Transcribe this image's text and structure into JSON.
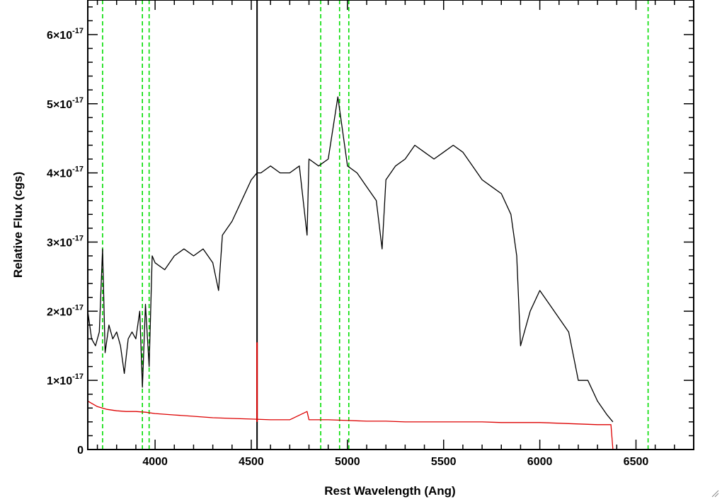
{
  "chart_data": {
    "type": "line",
    "title": "",
    "xlabel": "Rest Wavelength (Ang)",
    "ylabel": "Relative Flux (cgs)",
    "xlim": [
      3650,
      6800
    ],
    "ylim": [
      0,
      6.5e-17
    ],
    "x_ticks": [
      {
        "value": 4000,
        "label": "4000"
      },
      {
        "value": 4500,
        "label": "4500"
      },
      {
        "value": 5000,
        "label": "5000"
      },
      {
        "value": 5500,
        "label": "5500"
      },
      {
        "value": 6000,
        "label": "6000"
      },
      {
        "value": 6500,
        "label": "6500"
      }
    ],
    "y_ticks": [
      {
        "value": 0,
        "label": "0"
      },
      {
        "value": 1e-17,
        "mantissa": "1",
        "times": "×10",
        "exponent": "-17"
      },
      {
        "value": 2e-17,
        "mantissa": "2",
        "times": "×10",
        "exponent": "-17"
      },
      {
        "value": 3e-17,
        "mantissa": "3",
        "times": "×10",
        "exponent": "-17"
      },
      {
        "value": 4e-17,
        "mantissa": "4",
        "times": "×10",
        "exponent": "-17"
      },
      {
        "value": 5e-17,
        "mantissa": "5",
        "times": "×10",
        "exponent": "-17"
      },
      {
        "value": 6e-17,
        "mantissa": "6",
        "times": "×10",
        "exponent": "-17"
      }
    ],
    "reference_lines_x": [
      3727,
      3934,
      3969,
      4861,
      4959,
      5007,
      6563
    ],
    "reference_line_color": "#00dd00",
    "series": [
      {
        "color": "#000000",
        "points": [
          [
            3650,
            2e-17
          ],
          [
            3670,
            1.6e-17
          ],
          [
            3690,
            1.5e-17
          ],
          [
            3710,
            1.7e-17
          ],
          [
            3727,
            2.9e-17
          ],
          [
            3740,
            1.4e-17
          ],
          [
            3760,
            1.8e-17
          ],
          [
            3780,
            1.6e-17
          ],
          [
            3800,
            1.7e-17
          ],
          [
            3820,
            1.5e-17
          ],
          [
            3840,
            1.1e-17
          ],
          [
            3860,
            1.6e-17
          ],
          [
            3880,
            1.7e-17
          ],
          [
            3900,
            1.6e-17
          ],
          [
            3920,
            2e-17
          ],
          [
            3934,
            9e-18
          ],
          [
            3950,
            2.1e-17
          ],
          [
            3969,
            1.2e-17
          ],
          [
            3985,
            2.8e-17
          ],
          [
            4000,
            2.7e-17
          ],
          [
            4050,
            2.6e-17
          ],
          [
            4100,
            2.8e-17
          ],
          [
            4150,
            2.9e-17
          ],
          [
            4200,
            2.8e-17
          ],
          [
            4250,
            2.9e-17
          ],
          [
            4300,
            2.7e-17
          ],
          [
            4330,
            2.3e-17
          ],
          [
            4350,
            3.1e-17
          ],
          [
            4400,
            3.3e-17
          ],
          [
            4450,
            3.6e-17
          ],
          [
            4500,
            3.9e-17
          ],
          [
            4530,
            4e-17
          ],
          [
            4550,
            4e-17
          ],
          [
            4600,
            4.1e-17
          ],
          [
            4650,
            4e-17
          ],
          [
            4700,
            4e-17
          ],
          [
            4750,
            4.1e-17
          ],
          [
            4790,
            3.1e-17
          ],
          [
            4800,
            4.2e-17
          ],
          [
            4850,
            4.1e-17
          ],
          [
            4900,
            4.2e-17
          ],
          [
            4950,
            5.1e-17
          ],
          [
            5000,
            4.1e-17
          ],
          [
            5050,
            4e-17
          ],
          [
            5100,
            3.8e-17
          ],
          [
            5150,
            3.6e-17
          ],
          [
            5180,
            2.9e-17
          ],
          [
            5200,
            3.9e-17
          ],
          [
            5250,
            4.1e-17
          ],
          [
            5300,
            4.2e-17
          ],
          [
            5350,
            4.4e-17
          ],
          [
            5400,
            4.3e-17
          ],
          [
            5450,
            4.2e-17
          ],
          [
            5500,
            4.3e-17
          ],
          [
            5550,
            4.4e-17
          ],
          [
            5600,
            4.3e-17
          ],
          [
            5650,
            4.1e-17
          ],
          [
            5700,
            3.9e-17
          ],
          [
            5750,
            3.8e-17
          ],
          [
            5800,
            3.7e-17
          ],
          [
            5850,
            3.4e-17
          ],
          [
            5880,
            2.8e-17
          ],
          [
            5900,
            1.5e-17
          ],
          [
            5950,
            2e-17
          ],
          [
            6000,
            2.3e-17
          ],
          [
            6050,
            2.1e-17
          ],
          [
            6100,
            1.9e-17
          ],
          [
            6150,
            1.7e-17
          ],
          [
            6200,
            1e-17
          ],
          [
            6250,
            1e-17
          ],
          [
            6300,
            7e-18
          ],
          [
            6350,
            5e-18
          ],
          [
            6380,
            4e-18
          ]
        ]
      },
      {
        "color": "#dd0000",
        "points": [
          [
            3650,
            7e-18
          ],
          [
            3700,
            6.2e-18
          ],
          [
            3750,
            5.8e-18
          ],
          [
            3800,
            5.6e-18
          ],
          [
            3850,
            5.5e-18
          ],
          [
            3900,
            5.5e-18
          ],
          [
            3950,
            5.4e-18
          ],
          [
            4000,
            5.2e-18
          ],
          [
            4100,
            5e-18
          ],
          [
            4200,
            4.8e-18
          ],
          [
            4300,
            4.6e-18
          ],
          [
            4400,
            4.5e-18
          ],
          [
            4500,
            4.4e-18
          ],
          [
            4600,
            4.3e-18
          ],
          [
            4700,
            4.3e-18
          ],
          [
            4790,
            5.5e-18
          ],
          [
            4800,
            4.3e-18
          ],
          [
            4900,
            4.3e-18
          ],
          [
            5000,
            4.2e-18
          ],
          [
            5100,
            4.1e-18
          ],
          [
            5200,
            4.1e-18
          ],
          [
            5300,
            4e-18
          ],
          [
            5400,
            4e-18
          ],
          [
            5500,
            4e-18
          ],
          [
            5600,
            4e-18
          ],
          [
            5700,
            4e-18
          ],
          [
            5800,
            3.9e-18
          ],
          [
            5900,
            3.9e-18
          ],
          [
            6000,
            3.9e-18
          ],
          [
            6100,
            3.8e-18
          ],
          [
            6200,
            3.7e-18
          ],
          [
            6300,
            3.6e-18
          ],
          [
            6370,
            3.6e-18
          ],
          [
            6380,
            0.0
          ],
          [
            6800,
            0.0
          ]
        ]
      }
    ],
    "spikes": [
      {
        "x": 4530,
        "color": "#000000",
        "y_bottom": 0.0,
        "y_top": 6.5e-17
      },
      {
        "x": 4530,
        "color": "#dd0000",
        "y_bottom": 4e-18,
        "y_top": 1.55e-17
      }
    ]
  }
}
